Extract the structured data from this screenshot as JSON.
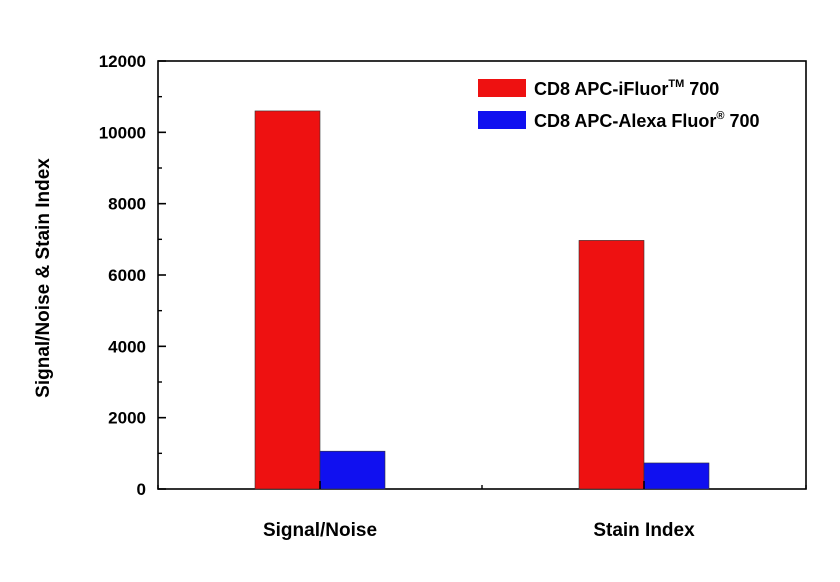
{
  "chart_data": {
    "type": "bar",
    "categories": [
      "Signal/Noise",
      "Stain Index"
    ],
    "series": [
      {
        "name": "CD8 APC-iFluor™ 700",
        "name_main": "CD8 APC-iFluor",
        "name_sup": "TM",
        "name_tail": " 700",
        "color": "#ee1111",
        "values": [
          10600,
          6970
        ]
      },
      {
        "name": "CD8 APC-Alexa Fluor® 700",
        "name_main": "CD8 APC-Alexa Fluor",
        "name_sup": "®",
        "name_tail": " 700",
        "color": "#1010f0",
        "values": [
          1060,
          730
        ]
      }
    ],
    "xlabel": "",
    "ylabel": "Signal/Noise & Stain Index",
    "ylim": [
      0,
      12000
    ],
    "yticks": [
      0,
      2000,
      4000,
      6000,
      8000,
      10000,
      12000
    ],
    "grid": false,
    "legend_position": "top-right"
  }
}
